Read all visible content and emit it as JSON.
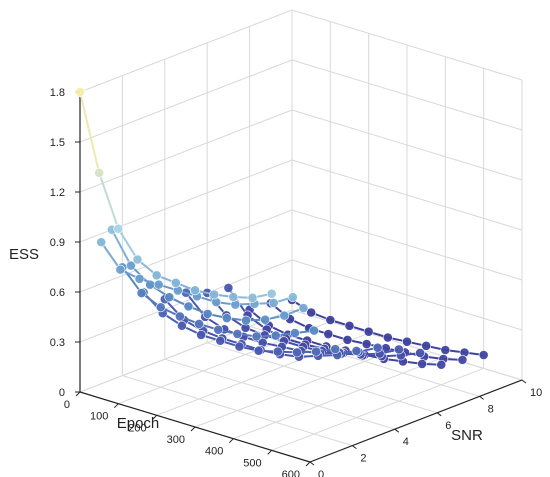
{
  "chart_data": {
    "type": "line3d",
    "title": "",
    "xlabel": "Epoch",
    "ylabel": "SNR",
    "zlabel": "ESS",
    "x_ticks": [
      "0",
      "100",
      "200",
      "300",
      "400",
      "500",
      "600"
    ],
    "y_ticks": [
      "0",
      "2",
      "4",
      "6",
      "8",
      "10"
    ],
    "z_ticks": [
      "0",
      "0.3",
      "0.6",
      "0.9",
      "1.2",
      "1.5",
      "1.8"
    ],
    "xlim": [
      0,
      600
    ],
    "ylim": [
      0,
      10
    ],
    "zlim": [
      0,
      1.8
    ],
    "epochs": [
      0,
      50,
      100,
      150,
      200,
      250,
      300,
      350,
      400,
      450,
      500
    ],
    "grid": true,
    "colormap": [
      "#f7eda6",
      "#a9d5e6",
      "#5b8fc6",
      "#4a58b0",
      "#3d3f9d"
    ],
    "series": [
      {
        "snr": 0,
        "values": [
          1.8,
          1.35,
          1.05,
          0.9,
          0.84,
          0.83,
          0.82,
          0.83,
          0.85,
          0.88,
          0.94
        ]
      },
      {
        "snr": 1,
        "values": [
          0.85,
          0.72,
          0.7,
          0.7,
          0.7,
          0.7,
          0.7,
          0.72,
          0.76,
          0.8,
          0.87
        ]
      },
      {
        "snr": 1.5,
        "values": [
          0.9,
          0.72,
          0.64,
          0.6,
          0.58,
          0.57,
          0.58,
          0.6,
          0.64,
          0.7,
          0.78
        ]
      },
      {
        "snr": 2,
        "values": [
          0.65,
          0.53,
          0.48,
          0.46,
          0.45,
          0.45,
          0.46,
          0.48,
          0.52,
          0.57,
          0.62
        ]
      },
      {
        "snr": 3,
        "values": [
          0.45,
          0.36,
          0.32,
          0.3,
          0.3,
          0.3,
          0.31,
          0.34,
          0.37,
          0.41,
          0.46
        ]
      },
      {
        "snr": 4,
        "values": [
          0.36,
          0.27,
          0.24,
          0.23,
          0.23,
          0.23,
          0.24,
          0.26,
          0.3,
          0.34,
          0.4
        ]
      },
      {
        "snr": 5,
        "values": [
          0.35,
          0.24,
          0.2,
          0.19,
          0.19,
          0.2,
          0.21,
          0.23,
          0.27,
          0.31,
          0.37
        ]
      },
      {
        "snr": 6,
        "values": [
          0.3,
          0.2,
          0.16,
          0.15,
          0.15,
          0.15,
          0.16,
          0.18,
          0.21,
          0.25,
          0.31
        ]
      },
      {
        "snr": 7,
        "values": [
          0.28,
          0.15,
          0.1,
          0.08,
          0.08,
          0.09,
          0.1,
          0.12,
          0.15,
          0.19,
          0.24
        ]
      },
      {
        "snr": 8,
        "values": [
          0.1,
          0.04,
          0.02,
          0.02,
          0.02,
          0.03,
          0.04,
          0.05,
          0.07,
          0.09,
          0.12
        ]
      },
      {
        "snr": 9,
        "values": [
          0.09,
          0.03,
          0.01,
          0.01,
          0.01,
          0.02,
          0.03,
          0.04,
          0.05,
          0.07,
          0.1
        ]
      },
      {
        "snr": 10,
        "values": [
          0.06,
          0.02,
          0.01,
          0.01,
          0.01,
          0.01,
          0.02,
          0.03,
          0.04,
          0.06,
          0.08
        ]
      }
    ]
  }
}
